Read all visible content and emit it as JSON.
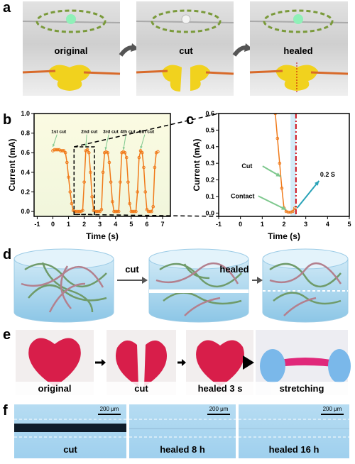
{
  "figure": {
    "a": {
      "label": "a",
      "captions": [
        "original",
        "cut",
        "healed"
      ]
    },
    "d": {
      "label": "d",
      "captions": [
        "cut",
        "healed"
      ]
    },
    "e": {
      "label": "e",
      "captions": [
        "original",
        "cut",
        "healed 3 s",
        "stretching"
      ]
    },
    "f": {
      "label": "f",
      "captions": [
        "cut",
        "healed 8 h",
        "healed 16 h"
      ],
      "scale_bar": "200 μm"
    }
  },
  "chart_data": [
    {
      "type": "line",
      "panel_label": "b",
      "x_label": "Time (s)",
      "y_label": "Current (mA)",
      "xlim": [
        -1.2,
        7.5
      ],
      "xticks": [
        -1,
        0,
        1,
        2,
        3,
        4,
        5,
        6,
        7
      ],
      "ylim": [
        -0.05,
        1.0
      ],
      "yticks": [
        {
          "value": 0,
          "label": "0.0"
        },
        {
          "value": 0.2,
          "label": "0.2"
        },
        {
          "value": 0.4,
          "label": "0.4"
        },
        {
          "value": 0.6,
          "label": "0.6"
        },
        {
          "value": 0.8,
          "label": "0.8"
        },
        {
          "value": 1.0,
          "label": "1.0"
        }
      ],
      "annotations": [
        "1st cut",
        "2nd cut",
        "3rd cut",
        "4th cut",
        "5th cut"
      ],
      "zoom_box": {
        "x": [
          1.35,
          2.65
        ],
        "y": [
          -0.03,
          0.66
        ]
      },
      "series": [
        {
          "color": "#f07a1a",
          "x": [
            0.0,
            0.1,
            0.2,
            0.3,
            0.4,
            0.5,
            0.6,
            0.7,
            0.8,
            0.9,
            1.0,
            1.1,
            1.2,
            1.3,
            1.4,
            1.5,
            1.6,
            1.7,
            1.8,
            1.9,
            2.0,
            2.1,
            2.2,
            2.3,
            2.4,
            2.5,
            2.6,
            2.7,
            2.8,
            2.9,
            3.0,
            3.1,
            3.2,
            3.3,
            3.4,
            3.5,
            3.6,
            3.7,
            3.8,
            3.9,
            4.0,
            4.1,
            4.2,
            4.3,
            4.4,
            4.5,
            4.6,
            4.7,
            4.8,
            4.9,
            5.0,
            5.1,
            5.2,
            5.3,
            5.4,
            5.5,
            5.6,
            5.7,
            5.8,
            5.9,
            6.0,
            6.1,
            6.2,
            6.3,
            6.4,
            6.5,
            6.6,
            6.7
          ],
          "values": [
            0.62,
            0.63,
            0.63,
            0.63,
            0.63,
            0.62,
            0.62,
            0.62,
            0.6,
            0.5,
            0.35,
            0.2,
            0.08,
            0.01,
            0,
            0,
            0,
            0,
            0,
            0.01,
            0.3,
            0.62,
            0.63,
            0.6,
            0.4,
            0.15,
            0.01,
            0,
            0,
            0,
            0,
            0.02,
            0.4,
            0.6,
            0.61,
            0.6,
            0.5,
            0.3,
            0.1,
            0,
            0,
            0,
            0,
            0.3,
            0.6,
            0.61,
            0.6,
            0.55,
            0.3,
            0.08,
            0,
            0,
            0,
            0,
            0.2,
            0.55,
            0.62,
            0.6,
            0.45,
            0.2,
            0.02,
            0,
            0,
            0,
            0.05,
            0.45,
            0.6,
            0.61
          ]
        }
      ]
    },
    {
      "type": "line",
      "panel_label": "c",
      "x_label": "Time (s)",
      "y_label": "Current (mA)",
      "xlim": [
        -1,
        5
      ],
      "xticks": [
        -1,
        0,
        1,
        2,
        3,
        4,
        5
      ],
      "ylim": [
        -0.02,
        0.6
      ],
      "yticks": [
        {
          "value": 0,
          "label": "0.0"
        },
        {
          "value": 0.1,
          "label": "0.1"
        },
        {
          "value": 0.2,
          "label": "0.2"
        },
        {
          "value": 0.3,
          "label": "0.3"
        },
        {
          "value": 0.4,
          "label": "0.4"
        },
        {
          "value": 0.5,
          "label": "0.5"
        },
        {
          "value": 0.6,
          "label": "0.6"
        }
      ],
      "annotations": [
        "Cut",
        "Contact",
        "0.2 S"
      ],
      "cut_line_x": 2.55,
      "contact_window": [
        2.3,
        2.55
      ],
      "series": [
        {
          "color": "#f07a1a",
          "x": [
            1.6,
            1.7,
            1.8,
            1.9,
            2.0,
            2.1,
            2.2,
            2.3,
            2.4,
            2.5
          ],
          "values": [
            0.6,
            0.45,
            0.3,
            0.15,
            0.03,
            0.01,
            0.005,
            0.005,
            0.01,
            0.03
          ]
        }
      ]
    }
  ]
}
